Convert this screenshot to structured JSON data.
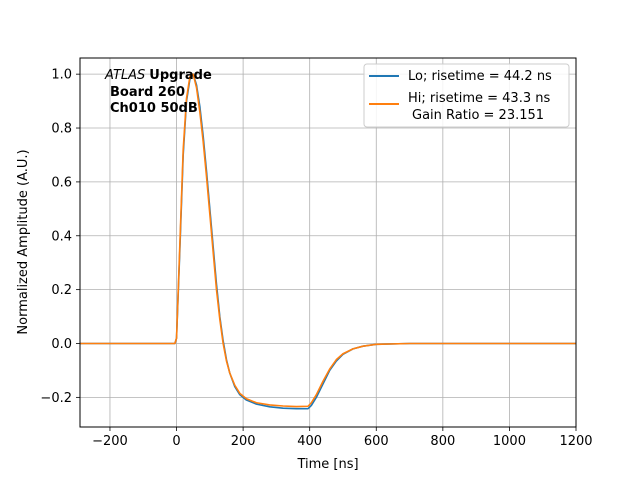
{
  "chart_data": {
    "type": "line",
    "xlabel": "Time [ns]",
    "ylabel": "Normalized Amplitude (A.U.)",
    "xlim": [
      -290,
      1200
    ],
    "ylim": [
      -0.31,
      1.06
    ],
    "xticks": [
      -200,
      0,
      200,
      400,
      600,
      800,
      1000,
      1200
    ],
    "yticks": [
      -0.2,
      0.0,
      0.2,
      0.4,
      0.6,
      0.8,
      1.0
    ],
    "xtick_labels": [
      "−200",
      "0",
      "200",
      "400",
      "600",
      "800",
      "1000",
      "1200"
    ],
    "ytick_labels": [
      "−0.2",
      "0.0",
      "0.2",
      "0.4",
      "0.6",
      "0.8",
      "1.0"
    ],
    "grid": true,
    "legend_position": "top-right",
    "annotation": {
      "atlas": "ATLAS",
      "upgrade": "Upgrade",
      "board": "Board 260",
      "channel": "Ch010 50dB"
    },
    "series": [
      {
        "name": "Lo; risetime = 44.2 ns",
        "color": "#1f77b4",
        "points": [
          [
            -290,
            0.0
          ],
          [
            -100,
            0.0
          ],
          [
            -5,
            0.0
          ],
          [
            0,
            0.02
          ],
          [
            10,
            0.35
          ],
          [
            20,
            0.7
          ],
          [
            30,
            0.9
          ],
          [
            40,
            0.98
          ],
          [
            50,
            1.0
          ],
          [
            60,
            0.96
          ],
          [
            70,
            0.88
          ],
          [
            80,
            0.77
          ],
          [
            90,
            0.64
          ],
          [
            100,
            0.5
          ],
          [
            110,
            0.36
          ],
          [
            120,
            0.22
          ],
          [
            130,
            0.1
          ],
          [
            140,
            0.01
          ],
          [
            150,
            -0.06
          ],
          [
            160,
            -0.11
          ],
          [
            175,
            -0.16
          ],
          [
            190,
            -0.19
          ],
          [
            210,
            -0.21
          ],
          [
            240,
            -0.225
          ],
          [
            280,
            -0.235
          ],
          [
            320,
            -0.24
          ],
          [
            360,
            -0.242
          ],
          [
            395,
            -0.242
          ],
          [
            405,
            -0.23
          ],
          [
            420,
            -0.2
          ],
          [
            440,
            -0.15
          ],
          [
            460,
            -0.1
          ],
          [
            480,
            -0.065
          ],
          [
            500,
            -0.04
          ],
          [
            530,
            -0.02
          ],
          [
            560,
            -0.01
          ],
          [
            600,
            -0.003
          ],
          [
            700,
            0.0
          ],
          [
            1200,
            0.0
          ]
        ]
      },
      {
        "name": "Hi; risetime = 43.3 ns",
        "name2": "Gain Ratio = 23.151",
        "color": "#ff7f0e",
        "points": [
          [
            -290,
            0.0
          ],
          [
            -100,
            0.0
          ],
          [
            -5,
            0.0
          ],
          [
            0,
            0.02
          ],
          [
            10,
            0.37
          ],
          [
            20,
            0.72
          ],
          [
            30,
            0.91
          ],
          [
            40,
            0.99
          ],
          [
            50,
            1.0
          ],
          [
            60,
            0.95
          ],
          [
            70,
            0.86
          ],
          [
            80,
            0.75
          ],
          [
            90,
            0.62
          ],
          [
            100,
            0.48
          ],
          [
            110,
            0.34
          ],
          [
            120,
            0.2
          ],
          [
            130,
            0.09
          ],
          [
            140,
            0.0
          ],
          [
            150,
            -0.065
          ],
          [
            160,
            -0.11
          ],
          [
            175,
            -0.155
          ],
          [
            190,
            -0.185
          ],
          [
            210,
            -0.205
          ],
          [
            240,
            -0.22
          ],
          [
            280,
            -0.228
          ],
          [
            320,
            -0.232
          ],
          [
            360,
            -0.234
          ],
          [
            395,
            -0.233
          ],
          [
            405,
            -0.22
          ],
          [
            420,
            -0.19
          ],
          [
            440,
            -0.14
          ],
          [
            460,
            -0.095
          ],
          [
            480,
            -0.06
          ],
          [
            500,
            -0.038
          ],
          [
            530,
            -0.02
          ],
          [
            560,
            -0.01
          ],
          [
            600,
            -0.003
          ],
          [
            700,
            0.0
          ],
          [
            1200,
            0.0
          ]
        ]
      }
    ]
  }
}
